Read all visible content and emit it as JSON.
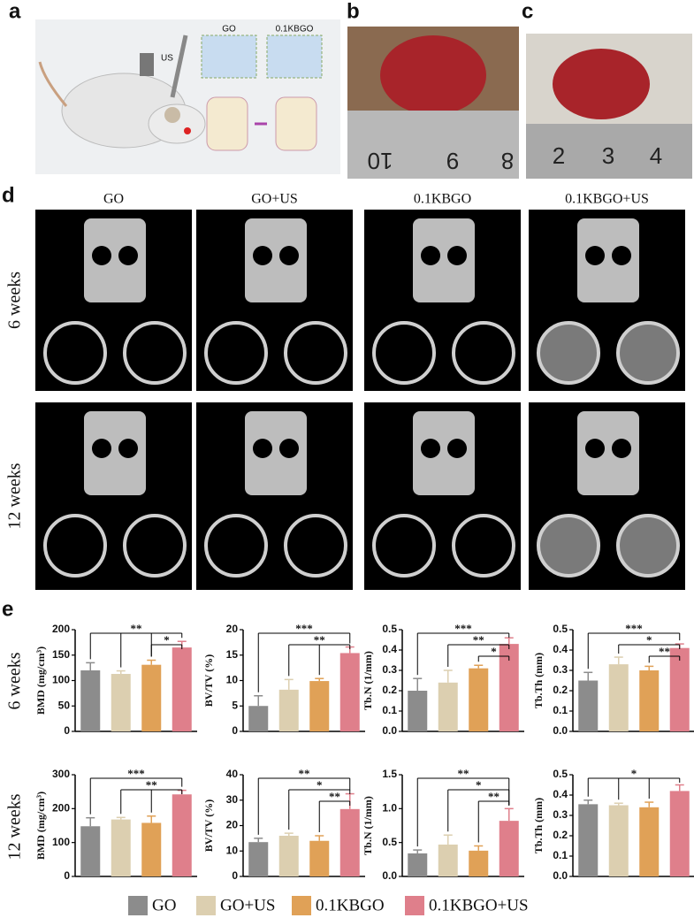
{
  "panels": {
    "a": {
      "label": "a",
      "texts": [
        "US",
        "GO",
        "0.1KBGO"
      ]
    },
    "b": {
      "label": "b",
      "ruler": [
        "10",
        "9",
        "8"
      ]
    },
    "c": {
      "label": "c",
      "ruler": [
        "2",
        "3",
        "4"
      ]
    },
    "d": {
      "label": "d",
      "columns": [
        "GO",
        "GO+US",
        "0.1KBGO",
        "0.1KBGO+US"
      ],
      "rows": [
        "6 weeks",
        "12 weeks"
      ]
    },
    "e": {
      "label": "e",
      "rows": [
        "6 weeks",
        "12 weeks"
      ]
    }
  },
  "legend": [
    {
      "name": "GO",
      "color": "#8c8c8c"
    },
    {
      "name": "GO+US",
      "color": "#dccfb0"
    },
    {
      "name": "0.1KBGO",
      "color": "#e0a157"
    },
    {
      "name": "0.1KBGO+US",
      "color": "#df7f8b"
    }
  ],
  "chart_data": [
    {
      "type": "bar",
      "ylabel": "BMD (mg/cm³)",
      "values": [
        120,
        113,
        131,
        165
      ],
      "errors": [
        15,
        6,
        9,
        12
      ],
      "ylim": [
        0,
        200
      ],
      "yticks": [
        0,
        50,
        100,
        150,
        200
      ],
      "significance": [
        {
          "label": "**",
          "groups": [
            0,
            1,
            2,
            3
          ]
        },
        {
          "label": "*",
          "groups": [
            2,
            3
          ]
        }
      ]
    },
    {
      "type": "bar",
      "ylabel": "BV/TV (%)",
      "values": [
        5,
        8.2,
        9.9,
        15.4
      ],
      "errors": [
        2,
        2,
        0.5,
        1.2
      ],
      "ylim": [
        0,
        20
      ],
      "yticks": [
        0,
        5,
        10,
        15,
        20
      ],
      "significance": [
        {
          "label": "***",
          "groups": [
            0,
            3
          ]
        },
        {
          "label": "**",
          "groups": [
            1,
            2,
            3
          ]
        }
      ]
    },
    {
      "type": "bar",
      "ylabel": "Tb.N (1/mm)",
      "values": [
        0.2,
        0.24,
        0.31,
        0.43
      ],
      "errors": [
        0.06,
        0.06,
        0.015,
        0.03
      ],
      "ylim": [
        0,
        0.5
      ],
      "yticks": [
        {
          "value": 0,
          "label": "0.0"
        },
        0.1,
        0.2,
        0.3,
        0.4,
        0.5
      ],
      "significance": [
        {
          "label": "***",
          "groups": [
            0,
            3
          ]
        },
        {
          "label": "**",
          "groups": [
            1,
            3
          ]
        },
        {
          "label": "*",
          "groups": [
            2,
            3
          ]
        }
      ]
    },
    {
      "type": "bar",
      "ylabel": "Tb.Th (mm)",
      "values": [
        0.25,
        0.33,
        0.3,
        0.41
      ],
      "errors": [
        0.04,
        0.035,
        0.02,
        0.02
      ],
      "ylim": [
        0,
        0.5
      ],
      "yticks": [
        {
          "value": 0,
          "label": "0.0"
        },
        0.1,
        0.2,
        0.3,
        0.4,
        0.5
      ],
      "significance": [
        {
          "label": "***",
          "groups": [
            0,
            3
          ]
        },
        {
          "label": "*",
          "groups": [
            1,
            3
          ]
        },
        {
          "label": "**",
          "groups": [
            2,
            3
          ]
        }
      ]
    },
    {
      "type": "bar",
      "ylabel": "BMD (mg/cm³)",
      "values": [
        148,
        168,
        158,
        242
      ],
      "errors": [
        25,
        6,
        20,
        12
      ],
      "ylim": [
        0,
        300
      ],
      "yticks": [
        0,
        100,
        200,
        300
      ],
      "significance": [
        {
          "label": "***",
          "groups": [
            0,
            3
          ]
        },
        {
          "label": "**",
          "groups": [
            1,
            2,
            3
          ]
        }
      ]
    },
    {
      "type": "bar",
      "ylabel": "BV/TV (%)",
      "values": [
        13.5,
        16,
        14,
        26.5
      ],
      "errors": [
        1.5,
        1,
        2,
        6
      ],
      "ylim": [
        0,
        40
      ],
      "yticks": [
        0,
        10,
        20,
        30,
        40
      ],
      "significance": [
        {
          "label": "**",
          "groups": [
            0,
            3
          ]
        },
        {
          "label": "*",
          "groups": [
            1,
            3
          ]
        },
        {
          "label": "**",
          "groups": [
            2,
            3
          ]
        }
      ]
    },
    {
      "type": "bar",
      "ylabel": "Tb.N (1/mm)",
      "values": [
        0.34,
        0.47,
        0.38,
        0.82
      ],
      "errors": [
        0.05,
        0.14,
        0.07,
        0.18
      ],
      "ylim": [
        0,
        1.5
      ],
      "yticks": [
        {
          "value": 0,
          "label": "0.0"
        },
        0.5,
        {
          "value": 1,
          "label": "1.0"
        },
        1.5
      ],
      "significance": [
        {
          "label": "**",
          "groups": [
            0,
            3
          ]
        },
        {
          "label": "*",
          "groups": [
            1,
            3
          ]
        },
        {
          "label": "**",
          "groups": [
            2,
            3
          ]
        }
      ]
    },
    {
      "type": "bar",
      "ylabel": "Tb.Th (mm)",
      "values": [
        0.355,
        0.35,
        0.34,
        0.42
      ],
      "errors": [
        0.02,
        0.01,
        0.025,
        0.03
      ],
      "ylim": [
        0,
        0.5
      ],
      "yticks": [
        {
          "value": 0,
          "label": "0.0"
        },
        0.1,
        0.2,
        0.3,
        0.4,
        0.5
      ],
      "significance": [
        {
          "label": "*",
          "groups": [
            0,
            1,
            2,
            3
          ]
        }
      ]
    }
  ]
}
